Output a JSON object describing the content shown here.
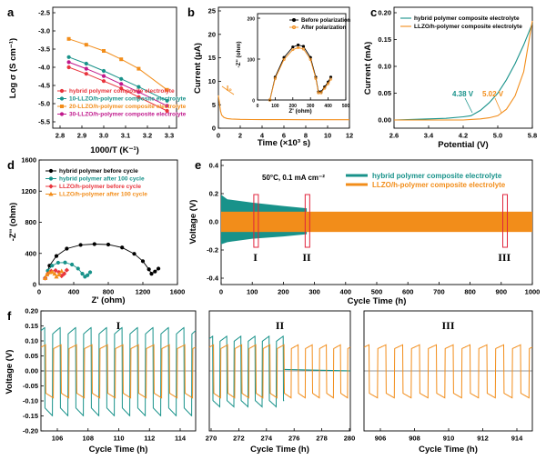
{
  "colors": {
    "red": "#e8343c",
    "teal": "#18928a",
    "orange": "#f28d1a",
    "magenta": "#c0188c",
    "black": "#000000",
    "box": "#e0243c"
  },
  "panels": {
    "a": {
      "letter": "a",
      "xlabel": "1000/T (K⁻¹)",
      "ylabel": "Log σ (S cm⁻¹)",
      "xticks": [
        "2.8",
        "2.9",
        "3.0",
        "3.1",
        "3.2",
        "3.3"
      ],
      "yticks": [
        "-2.5",
        "-3.0",
        "-3.5",
        "-4.0",
        "-4.5",
        "-5.0",
        "-5.5"
      ],
      "legend": [
        "hybrid polymer composite electrolyte",
        "10-LLZO/h-polymer composite electrolyte",
        "20-LLZO/h-polymer composite electrolyte",
        "30-LLZO/h-polymer composite electrolyte"
      ]
    },
    "b": {
      "letter": "b",
      "xlabel": "Time (×10³ s)",
      "ylabel": "Current (μA)",
      "xticks": [
        "0",
        "2",
        "4",
        "6",
        "8",
        "10",
        "12"
      ],
      "yticks": [
        "0",
        "5",
        "10",
        "15",
        "20",
        "25"
      ],
      "i0_label": "I₀",
      "inset": {
        "xlabel": "Z' (ohm)",
        "ylabel": "-Z'' (ohm)",
        "xticks": [
          "0",
          "100",
          "200",
          "300",
          "400",
          "500"
        ],
        "yticks": [
          "0",
          "100",
          "200"
        ],
        "legend": [
          "Before polarization",
          "After polarization"
        ]
      }
    },
    "c": {
      "letter": "c",
      "xlabel": "Potential (V)",
      "ylabel": "Current (mA)",
      "xticks": [
        "2.6",
        "3.4",
        "4.2",
        "5.0",
        "5.8"
      ],
      "yticks": [
        "0.00",
        "0.05",
        "0.10",
        "0.15",
        "0.20"
      ],
      "legend": [
        "hybrid polymer composite electrolyte",
        "LLZO/h-polymer composite electrolyte"
      ],
      "ann_teal": "4.38 V",
      "ann_orange": "5.02 V"
    },
    "d": {
      "letter": "d",
      "xlabel": "Z' (ohm)",
      "ylabel": "-Z'' (ohm)",
      "xticks": [
        "0",
        "400",
        "800",
        "1200",
        "1600"
      ],
      "yticks": [
        "0",
        "400",
        "800",
        "1200",
        "1600"
      ],
      "legend": [
        "hybrid polymer before cycle",
        "hybrid polymer after 100 cycle",
        "LLZO/h-polymer before cycle",
        "LLZO/h-polymer after 100 cycle"
      ]
    },
    "e": {
      "letter": "e",
      "xlabel": "Cycle Time (h)",
      "ylabel": "Voltage (V)",
      "xticks": [
        "0",
        "100",
        "200",
        "300",
        "400",
        "500",
        "600",
        "700",
        "800",
        "900",
        "1000"
      ],
      "yticks": [
        "-0.4",
        "-0.2",
        "0.0",
        "0.2",
        "0.4"
      ],
      "condition": "50°C, 0.1 mA cm⁻²",
      "legend": [
        "hybrid polymer composite electrolyte",
        "LLZO/h-polymer composite electrolyte"
      ],
      "regions": [
        "I",
        "II",
        "III"
      ]
    },
    "f": {
      "letter": "f",
      "xlabel": "Cycle Time (h)",
      "ylabel": "Voltage (V)",
      "yticks": [
        "-0.20",
        "-0.15",
        "-0.10",
        "-0.05",
        "0.00",
        "0.05",
        "0.10",
        "0.15",
        "0.20"
      ],
      "sub": [
        {
          "roman": "I",
          "xticks": [
            "106",
            "108",
            "110",
            "112",
            "114"
          ]
        },
        {
          "roman": "II",
          "xticks": [
            "270",
            "272",
            "274",
            "276",
            "278",
            "280"
          ]
        },
        {
          "roman": "III",
          "xticks": [
            "906",
            "908",
            "910",
            "912",
            "914"
          ]
        }
      ]
    }
  },
  "chart_data": [
    {
      "type": "line",
      "panel": "a",
      "xlabel": "1000/T (K⁻¹)",
      "ylabel": "Log σ (S cm⁻¹)",
      "xlim": [
        2.8,
        3.3
      ],
      "ylim": [
        -5.5,
        -2.5
      ],
      "x": [
        2.84,
        2.92,
        3.0,
        3.08,
        3.16,
        3.29
      ],
      "series": [
        {
          "name": "hybrid polymer composite electrolyte",
          "values": [
            -4.0,
            -4.18,
            -4.38,
            -4.58,
            -4.82,
            -5.2
          ]
        },
        {
          "name": "10-LLZO/h-polymer composite electrolyte",
          "values": [
            -3.72,
            -3.9,
            -4.1,
            -4.32,
            -4.54,
            -4.92
          ]
        },
        {
          "name": "20-LLZO/h-polymer composite electrolyte",
          "values": [
            -3.22,
            -3.38,
            -3.55,
            -3.78,
            -4.04,
            -4.62
          ]
        },
        {
          "name": "30-LLZO/h-polymer composite electrolyte",
          "values": [
            -3.86,
            -4.04,
            -4.24,
            -4.46,
            -4.68,
            -5.06
          ]
        }
      ]
    },
    {
      "type": "line",
      "panel": "b",
      "xlabel": "Time (×10³ s)",
      "ylabel": "Current (μA)",
      "xlim": [
        0,
        12
      ],
      "ylim": [
        0,
        25
      ],
      "x": [
        0,
        0.1,
        0.2,
        0.3,
        0.5,
        0.8,
        1.2,
        2,
        3,
        4,
        6,
        8,
        10,
        12
      ],
      "series": [
        {
          "name": "After polarization",
          "values": [
            7.0,
            5.3,
            3.6,
            2.8,
            2.3,
            2.05,
            1.95,
            1.88,
            1.85,
            1.83,
            1.82,
            1.8,
            1.8,
            1.8
          ]
        }
      ],
      "inset": {
        "xlabel": "Z' (ohm)",
        "ylabel": "-Z'' (ohm)",
        "xlim": [
          0,
          500
        ],
        "ylim": [
          0,
          250
        ],
        "series": [
          {
            "name": "Before polarization",
            "x": [
              70,
              100,
              150,
              200,
              230,
              260,
              300,
              330,
              345,
              360,
              380,
              400,
              415
            ],
            "values": [
              0,
              70,
              130,
              162,
              168,
              164,
              130,
              70,
              25,
              25,
              40,
              55,
              70
            ]
          },
          {
            "name": "After polarization",
            "x": [
              70,
              100,
              150,
              200,
              230,
              260,
              300,
              330,
              345,
              360,
              380,
              400,
              415
            ],
            "values": [
              0,
              66,
              124,
              154,
              160,
              156,
              124,
              66,
              22,
              22,
              36,
              50,
              64
            ]
          }
        ]
      }
    },
    {
      "type": "line",
      "panel": "c",
      "xlabel": "Potential (V)",
      "ylabel": "Current (mA)",
      "xlim": [
        2.6,
        5.8
      ],
      "ylim": [
        -0.02,
        0.2
      ],
      "x": [
        2.6,
        3.0,
        3.4,
        3.8,
        4.2,
        4.38,
        4.6,
        4.8,
        5.0,
        5.2,
        5.4,
        5.6,
        5.8
      ],
      "series": [
        {
          "name": "hybrid polymer composite electrolyte",
          "values": [
            0.0,
            0.001,
            0.002,
            0.003,
            0.006,
            0.008,
            0.018,
            0.032,
            0.05,
            0.075,
            0.105,
            0.14,
            0.18
          ]
        },
        {
          "name": "LLZO/h-polymer composite electrolyte",
          "values": [
            0.0,
            0.0,
            0.0,
            0.0,
            0.0,
            0.001,
            0.002,
            0.004,
            0.008,
            0.02,
            0.045,
            0.09,
            0.185
          ]
        }
      ]
    },
    {
      "type": "scatter",
      "panel": "d",
      "xlabel": "Z' (ohm)",
      "ylabel": "-Z'' (ohm)",
      "xlim": [
        0,
        1600
      ],
      "ylim": [
        0,
        1600
      ],
      "series": [
        {
          "name": "hybrid polymer before cycle",
          "x": [
            70,
            120,
            200,
            320,
            480,
            640,
            800,
            960,
            1100,
            1200,
            1270,
            1300,
            1340,
            1380
          ],
          "values": [
            0,
            170,
            300,
            400,
            450,
            462,
            455,
            415,
            330,
            230,
            120,
            60,
            90,
            130
          ]
        },
        {
          "name": "hybrid polymer after 100 cycle",
          "x": [
            70,
            100,
            150,
            220,
            300,
            380,
            450,
            500,
            530,
            560,
            590
          ],
          "values": [
            0,
            100,
            170,
            210,
            212,
            185,
            130,
            60,
            20,
            40,
            80
          ]
        },
        {
          "name": "LLZO/h-polymer before cycle",
          "x": [
            70,
            100,
            140,
            190,
            230,
            260,
            290,
            320
          ],
          "values": [
            0,
            60,
            95,
            105,
            80,
            30,
            60,
            110
          ]
        },
        {
          "name": "LLZO/h-polymer after 100 cycle",
          "x": [
            70,
            90,
            120,
            150,
            180,
            200,
            230,
            260
          ],
          "values": [
            0,
            50,
            80,
            85,
            60,
            20,
            50,
            95
          ]
        }
      ]
    },
    {
      "type": "line",
      "panel": "e",
      "xlabel": "Cycle Time (h)",
      "ylabel": "Voltage (V)",
      "xlim": [
        0,
        1000
      ],
      "ylim": [
        -0.5,
        0.5
      ],
      "series": [
        {
          "name": "hybrid polymer composite electrolyte",
          "x": [
            0,
            20,
            100,
            200,
            275,
            276,
            1000
          ],
          "envelope_max": [
            0.24,
            0.2,
            0.17,
            0.14,
            0.12,
            0.01,
            0.01
          ],
          "envelope_min": [
            -0.2,
            -0.18,
            -0.15,
            -0.13,
            -0.11,
            -0.01,
            -0.01
          ]
        },
        {
          "name": "LLZO/h-polymer composite electrolyte",
          "x": [
            0,
            1000
          ],
          "envelope_max": [
            0.09,
            0.09
          ],
          "envelope_min": [
            -0.09,
            -0.09
          ]
        }
      ],
      "regions": [
        {
          "label": "I",
          "x": [
            105,
            115
          ]
        },
        {
          "label": "II",
          "x": [
            270,
            280
          ]
        },
        {
          "label": "III",
          "x": [
            905,
            915
          ]
        }
      ]
    },
    {
      "type": "line",
      "panel": "f",
      "xlabel": "Cycle Time (h)",
      "ylabel": "Voltage (V)",
      "ylim": [
        -0.2,
        0.2
      ],
      "subplots": [
        {
          "label": "I",
          "xlim": [
            105,
            115
          ],
          "period_h": 1,
          "series": [
            {
              "name": "hybrid polymer composite electrolyte",
              "amplitude": 0.15
            },
            {
              "name": "LLZO/h-polymer composite electrolyte",
              "amplitude": 0.09
            }
          ]
        },
        {
          "label": "II",
          "xlim": [
            270,
            280
          ],
          "period_h": 1,
          "short_circuit_at_h": 275.3,
          "series": [
            {
              "name": "hybrid polymer composite electrolyte",
              "amplitude": 0.12
            },
            {
              "name": "LLZO/h-polymer composite electrolyte",
              "amplitude": 0.09
            }
          ]
        },
        {
          "label": "III",
          "xlim": [
            905,
            915
          ],
          "period_h": 1,
          "series": [
            {
              "name": "LLZO/h-polymer composite electrolyte",
              "amplitude": 0.09
            }
          ]
        }
      ]
    }
  ]
}
